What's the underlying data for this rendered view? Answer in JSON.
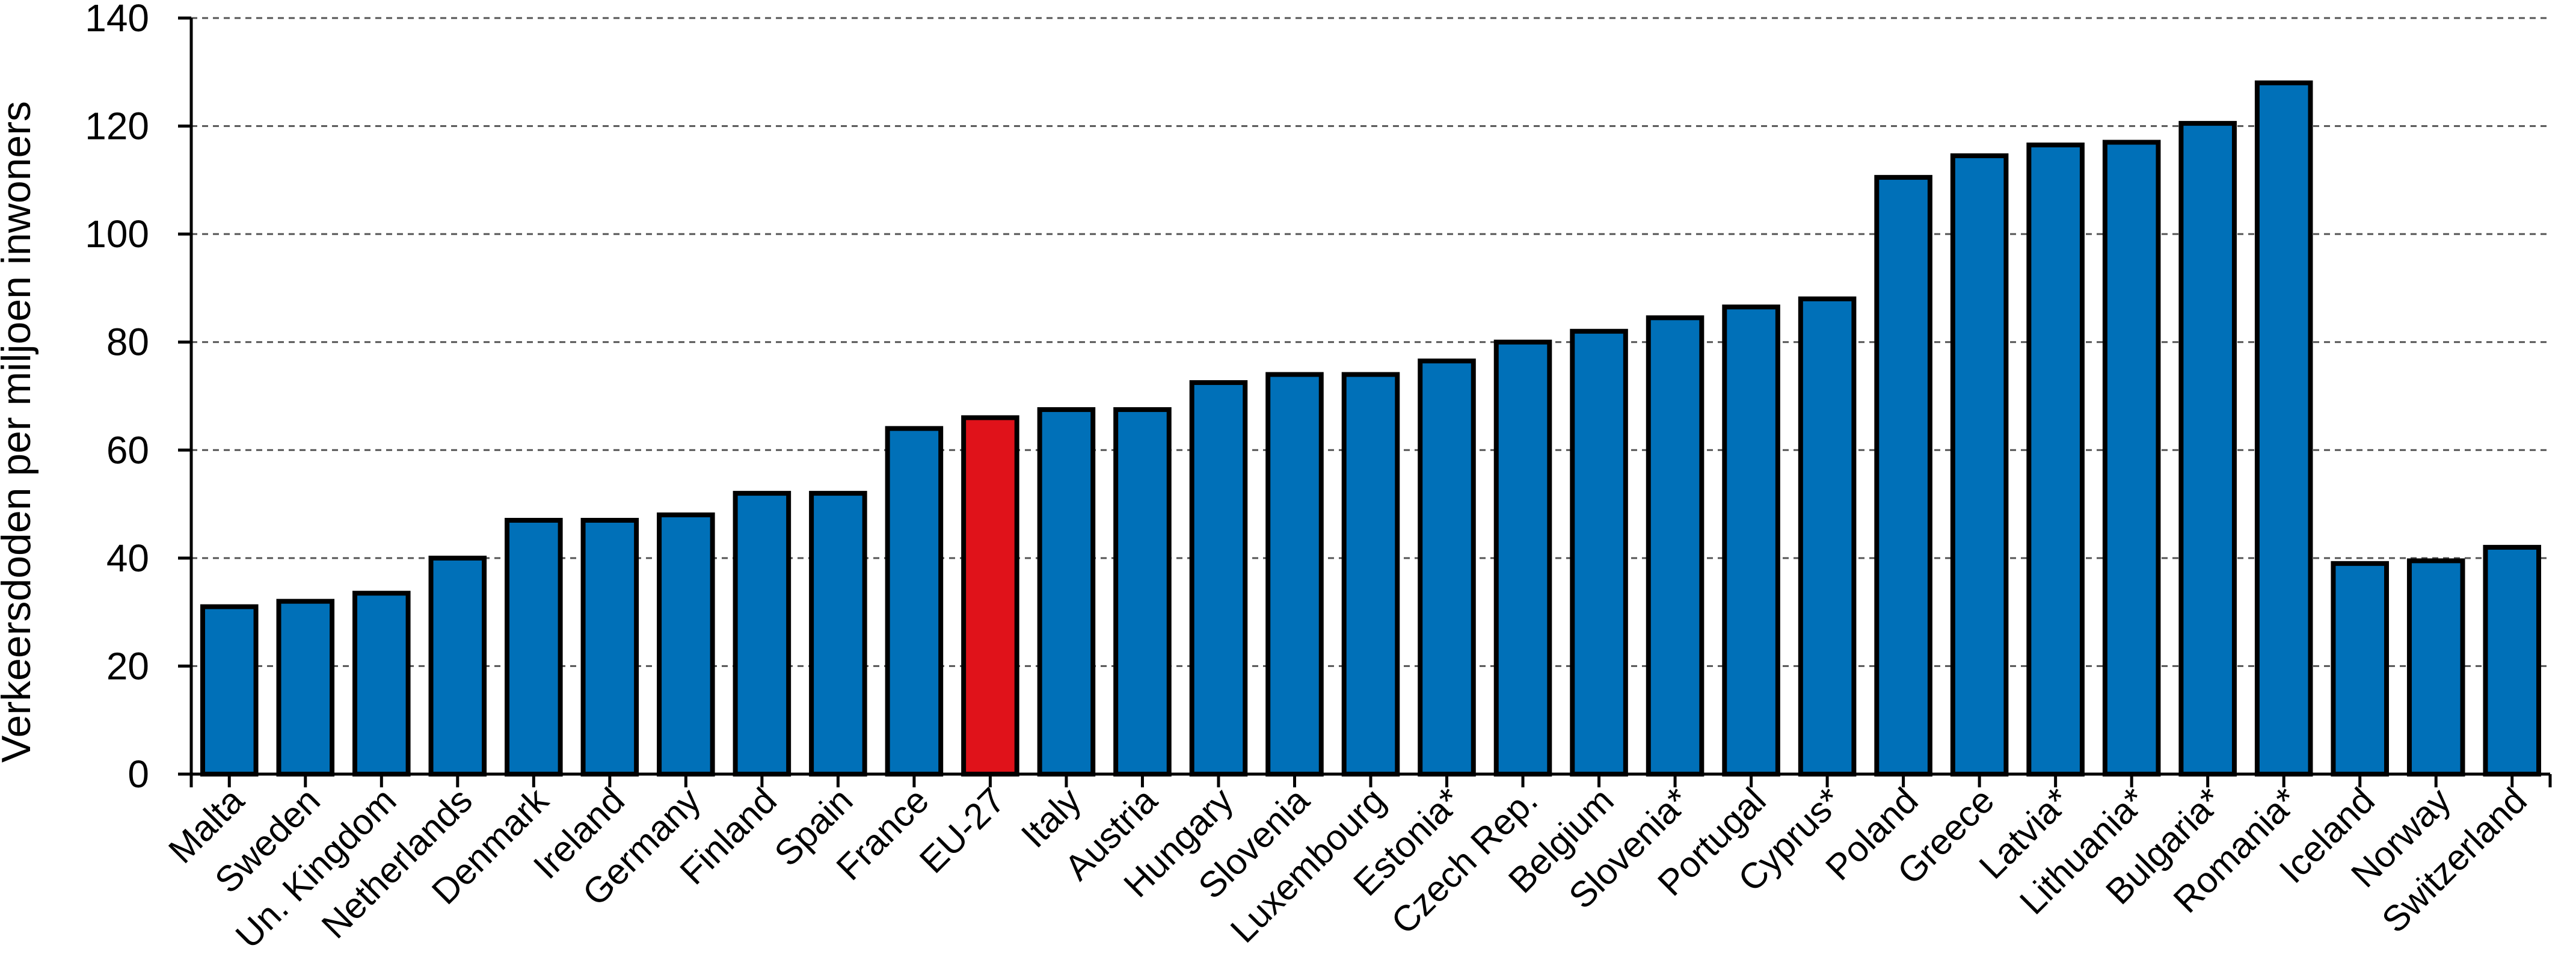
{
  "chart_data": {
    "type": "bar",
    "title": "",
    "xlabel": "",
    "ylabel": "Verkeersdoden per miljoen inwoners",
    "ylim": [
      0,
      140
    ],
    "yticks": [
      0,
      20,
      40,
      60,
      80,
      100,
      120,
      140
    ],
    "grid": true,
    "legend": "none",
    "categories": [
      "Malta",
      "Sweden",
      "Un. Kingdom",
      "Netherlands",
      "Denmark",
      "Ireland",
      "Germany",
      "Finland",
      "Spain",
      "France",
      "EU-27",
      "Italy",
      "Austria",
      "Hungary",
      "Slovenia",
      "Luxembourg",
      "Estonia*",
      "Czech Rep.",
      "Belgium",
      "Slovenia*",
      "Portugal",
      "Cyprus*",
      "Poland",
      "Greece",
      "Latvia*",
      "Lithuania*",
      "Bulgaria*",
      "Romania*",
      "Iceland",
      "Norway",
      "Switzerland"
    ],
    "values": [
      31,
      32,
      33.5,
      40,
      47,
      47,
      48,
      52,
      52,
      64,
      66,
      67.5,
      67.5,
      72.5,
      74,
      74,
      76.5,
      80,
      82,
      84.5,
      86.5,
      88,
      110.5,
      114.5,
      116.5,
      117,
      120.5,
      128,
      39,
      39.5,
      42
    ],
    "colors": {
      "default": "#0070b8",
      "highlight": "#e0121a",
      "highlight_category": "EU-27"
    }
  }
}
